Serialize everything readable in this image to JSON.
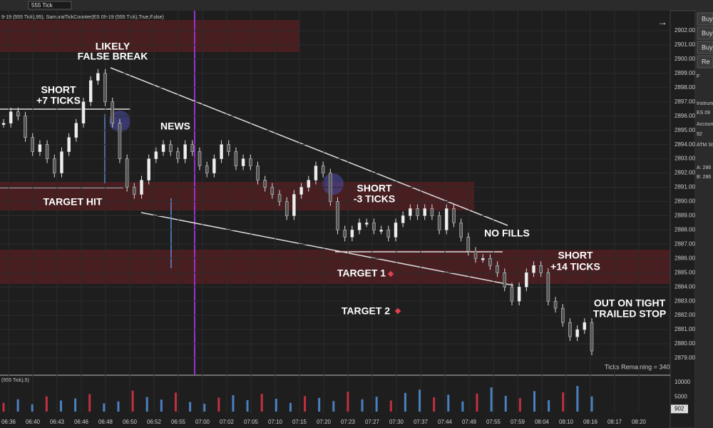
{
  "toolbar": {
    "interval": "555 Tick",
    "indicator_label": "9-19 (555 Tick),95), SamuraiTickCounter(ES 09-19 (555 Tick),True,False)"
  },
  "chart": {
    "price_ticks": [
      {
        "value": 2902,
        "label": "2902.00"
      },
      {
        "value": 2901,
        "label": "2901.00"
      },
      {
        "value": 2900,
        "label": "2900.00"
      },
      {
        "value": 2899,
        "label": "2899.00"
      },
      {
        "value": 2898,
        "label": "2898.00"
      },
      {
        "value": 2897,
        "label": "2897.00"
      },
      {
        "value": 2896,
        "label": "2896.00"
      },
      {
        "value": 2895,
        "label": "2895.00"
      },
      {
        "value": 2894,
        "label": "2894.00"
      },
      {
        "value": 2893,
        "label": "2893.00"
      },
      {
        "value": 2892,
        "label": "2892.00"
      },
      {
        "value": 2891,
        "label": "2891.00"
      },
      {
        "value": 2890,
        "label": "2890.00"
      },
      {
        "value": 2889,
        "label": "2889.00"
      },
      {
        "value": 2888,
        "label": "2888.00"
      },
      {
        "value": 2887,
        "label": "2887.00"
      },
      {
        "value": 2886,
        "label": "2886.00"
      },
      {
        "value": 2885,
        "label": "2885.00"
      },
      {
        "value": 2884,
        "label": "2884.00"
      },
      {
        "value": 2883,
        "label": "2883.00"
      },
      {
        "value": 2882,
        "label": "2882.00"
      },
      {
        "value": 2881,
        "label": "2881.00"
      },
      {
        "value": 2880,
        "label": "2880.00"
      },
      {
        "value": 2879,
        "label": "2879.00"
      }
    ],
    "time_labels": [
      "06:36",
      "06:40",
      "06:43",
      "06:46",
      "06:48",
      "06:50",
      "06:52",
      "06:55",
      "07:00",
      "07:02",
      "07:05",
      "07:10",
      "07:15",
      "07:20",
      "07:23",
      "07:27",
      "07:30",
      "07:37",
      "07:44",
      "07:49",
      "07:55",
      "07:59",
      "08:04",
      "08:10",
      "08:16",
      "08:17",
      "08:20"
    ],
    "closes": [
      2895.5,
      2896.3,
      2896,
      2894.5,
      2893.5,
      2894,
      2893,
      2892,
      2893.5,
      2894.5,
      2895.5,
      2897,
      2898.5,
      2899,
      2897,
      2895.5,
      2893,
      2891,
      2890.5,
      2891.5,
      2893,
      2893.5,
      2894,
      2893.5,
      2893,
      2894,
      2893.5,
      2892.5,
      2892,
      2893,
      2894,
      2893.5,
      2892.5,
      2893,
      2892.5,
      2891.5,
      2891,
      2890.5,
      2890,
      2889,
      2890.5,
      2891,
      2891.5,
      2892.5,
      2892,
      2890,
      2888,
      2887.5,
      2888,
      2888.5,
      2888.5,
      2888,
      2888,
      2887.5,
      2888.5,
      2889,
      2889.5,
      2889,
      2889.5,
      2889,
      2888,
      2889.5,
      2888.5,
      2887.5,
      2886.5,
      2886,
      2886,
      2885.5,
      2885,
      2884,
      2883,
      2884,
      2885,
      2885.5,
      2885,
      2883,
      2882.5,
      2881.5,
      2880.5,
      2881,
      2881.5,
      2879.5
    ],
    "annotations": [
      "LIKELY",
      "FALSE BREAK",
      "SHORT",
      "+7 TICKS",
      "TARGET HIT",
      "NEWS",
      "SHORT",
      "-3 TICKS",
      "NO FILLS",
      "TARGET 1",
      "TARGET 2",
      "SHORT",
      "+14 TICKS",
      "OUT ON TIGHT",
      "TRAILED STOP"
    ],
    "ticks_remaining": "Ticks Remaining = 340"
  },
  "volume": {
    "label": "(555 Tick),5)",
    "ticks": [
      10000,
      5000
    ],
    "current": 902,
    "ylim": [
      0,
      11000
    ],
    "values": [
      3000,
      4200,
      2500,
      5200,
      3800,
      4500,
      6000,
      2800,
      3500,
      7200,
      5000,
      4100,
      6500,
      3300,
      2700,
      4800,
      5600,
      3900,
      6100,
      4400,
      3000,
      5300,
      4700,
      3600,
      6800,
      4200,
      5100,
      3800,
      6400,
      7500,
      4900,
      5800,
      3500,
      6200,
      8300,
      5400,
      4600,
      7000,
      3900,
      6600,
      8800,
      5200
    ]
  },
  "side_panel": {
    "buttons": [
      "Buy",
      "Buy",
      "Buy",
      "Re"
    ],
    "labels": [
      "F",
      "Instrum",
      "ES 09",
      "Accoun",
      "92",
      "ATM Str",
      "A: 286",
      "B: 286"
    ]
  }
}
